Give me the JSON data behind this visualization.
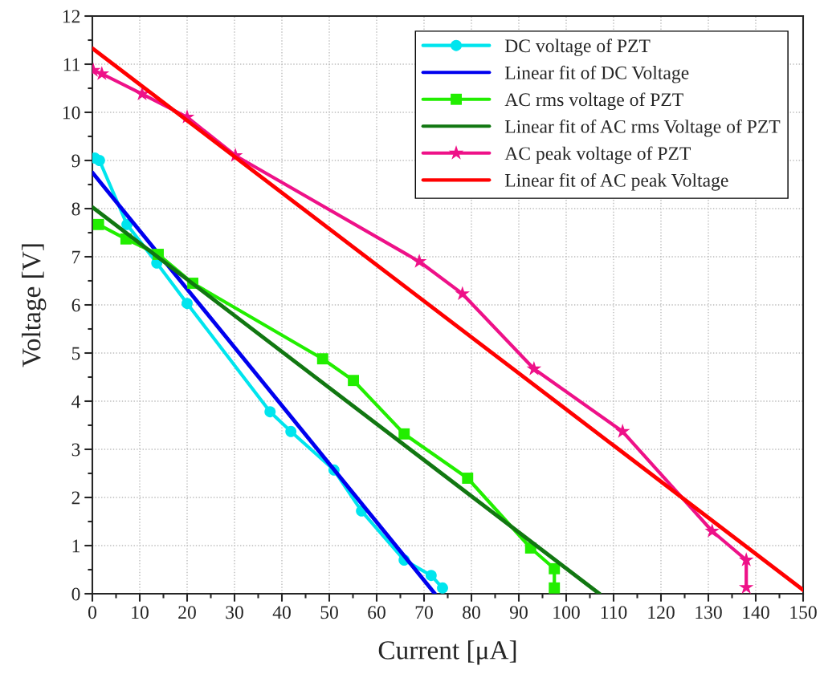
{
  "chart_data": {
    "type": "line",
    "xlabel": "Current [μA]",
    "ylabel": "Voltage [V]",
    "xlim": [
      0,
      150
    ],
    "ylim": [
      0,
      12
    ],
    "xticks": [
      0,
      10,
      20,
      30,
      40,
      50,
      60,
      70,
      80,
      90,
      100,
      110,
      120,
      130,
      140,
      150
    ],
    "yticks": [
      0,
      1,
      2,
      3,
      4,
      5,
      6,
      7,
      8,
      9,
      10,
      11,
      12
    ],
    "grid": true,
    "legend": "top right",
    "series": [
      {
        "name": "DC voltage of PZT",
        "color": "#00e5ee",
        "marker": "circle",
        "line_style": "solid",
        "x": [
          0.5,
          1.5,
          7.3,
          13.6,
          20,
          37.5,
          41.9,
          51,
          56.8,
          65.8,
          71.5,
          73.9
        ],
        "values": [
          9.05,
          9.0,
          7.67,
          6.87,
          6.03,
          3.78,
          3.37,
          2.57,
          1.72,
          0.7,
          0.38,
          0.12
        ]
      },
      {
        "name": "Linear fit of DC Voltage",
        "color": "#0000ee",
        "marker": "none",
        "line_style": "solid",
        "x": [
          0,
          72.3
        ],
        "values": [
          8.75,
          0
        ]
      },
      {
        "name": "AC rms voltage of PZT",
        "color": "#22ee00",
        "marker": "square",
        "line_style": "solid",
        "x": [
          1.3,
          7.1,
          13.9,
          21.2,
          48.6,
          55.1,
          65.8,
          79.2,
          92.5,
          97.5,
          97.5
        ],
        "values": [
          7.67,
          7.37,
          7.05,
          6.45,
          4.88,
          4.43,
          3.32,
          2.4,
          0.95,
          0.52,
          0.12
        ]
      },
      {
        "name": "Linear fit of AC rms Voltage of PZT",
        "color": "#117711",
        "marker": "none",
        "line_style": "solid",
        "x": [
          0,
          107
        ],
        "values": [
          8.03,
          0
        ]
      },
      {
        "name": "AC peak voltage of PZT",
        "color": "#ee1188",
        "marker": "star",
        "line_style": "solid",
        "x": [
          0.2,
          2,
          10.5,
          20,
          30.2,
          69,
          78.1,
          93.2,
          111.9,
          130.8,
          138,
          138
        ],
        "values": [
          10.87,
          10.8,
          10.38,
          9.9,
          9.1,
          6.9,
          6.23,
          4.67,
          3.37,
          1.3,
          0.7,
          0.13
        ]
      },
      {
        "name": "Linear fit of AC peak Voltage",
        "color": "#ff0000",
        "marker": "none",
        "line_style": "solid",
        "x": [
          0,
          150
        ],
        "values": [
          11.33,
          0.08
        ]
      }
    ]
  }
}
